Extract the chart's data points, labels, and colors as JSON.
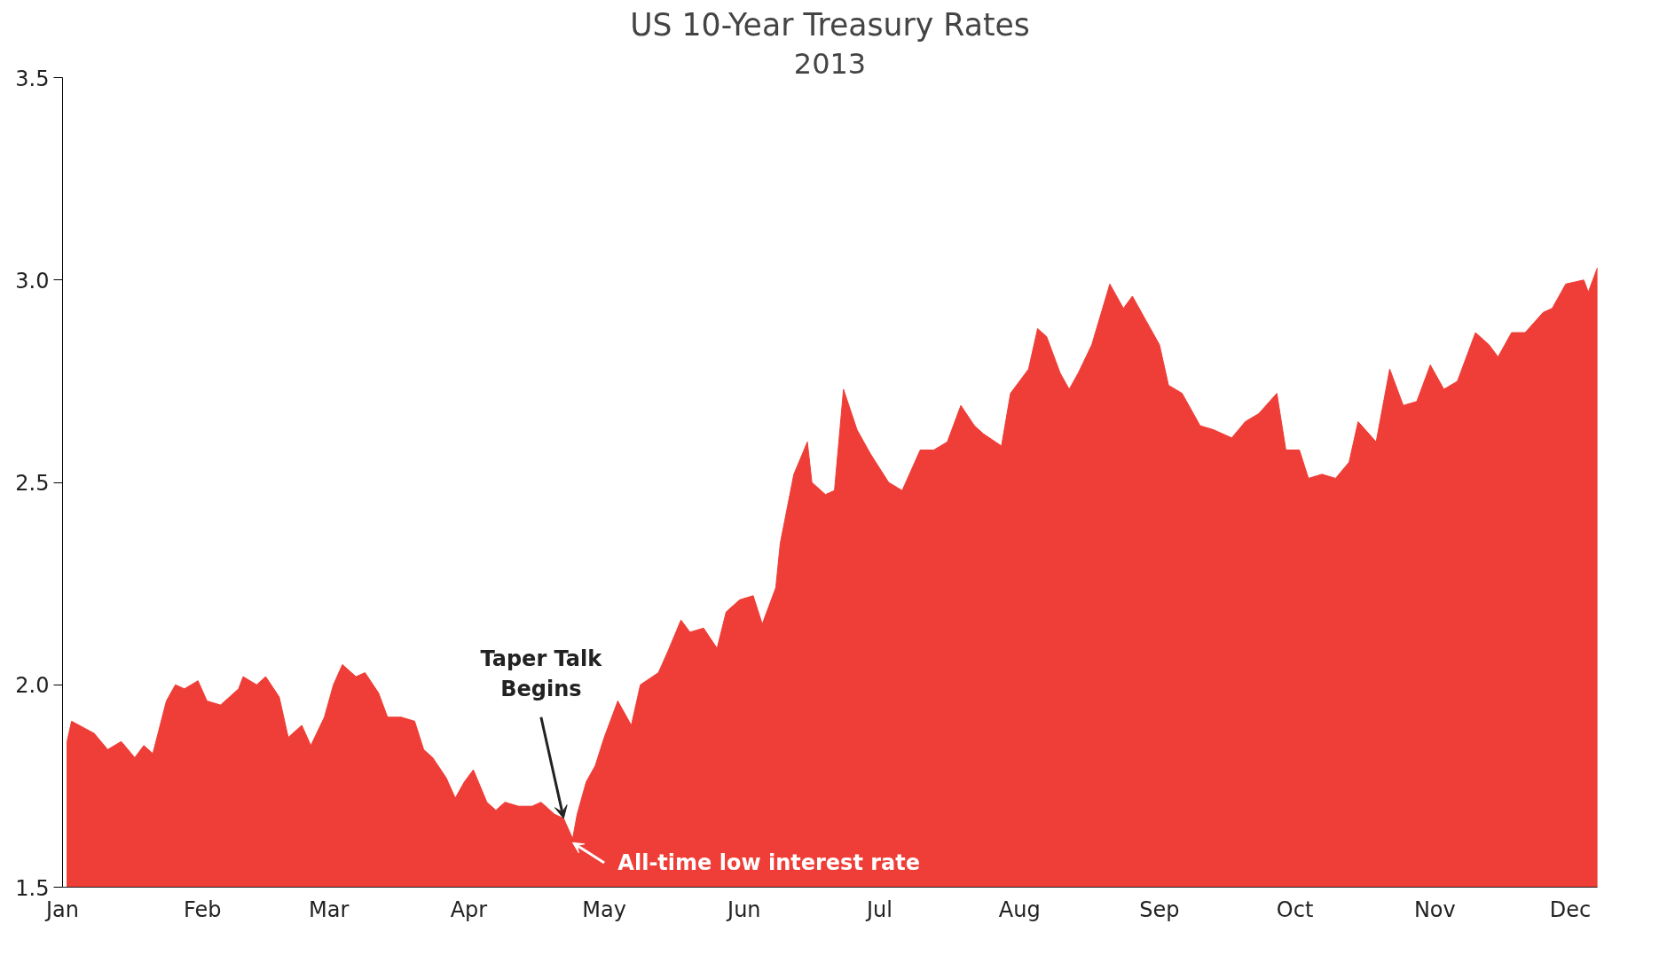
{
  "chart_data": {
    "type": "area",
    "title": "US 10-Year Treasury Rates",
    "subtitle": "2013",
    "x": [
      "2013-01-02",
      "2013-01-03",
      "2013-01-08",
      "2013-01-11",
      "2013-01-14",
      "2013-01-17",
      "2013-01-19",
      "2013-01-21",
      "2013-01-24",
      "2013-01-26",
      "2013-01-28",
      "2013-01-31",
      "2013-02-02",
      "2013-02-05",
      "2013-02-09",
      "2013-02-10",
      "2013-02-13",
      "2013-02-15",
      "2013-02-18",
      "2013-02-20",
      "2013-02-23",
      "2013-02-25",
      "2013-02-28",
      "2013-03-02",
      "2013-03-04",
      "2013-03-07",
      "2013-03-09",
      "2013-03-12",
      "2013-03-14",
      "2013-03-17",
      "2013-03-20",
      "2013-03-22",
      "2013-03-24",
      "2013-03-27",
      "2013-03-29",
      "2013-03-31",
      "2013-04-02",
      "2013-04-05",
      "2013-04-07",
      "2013-04-09",
      "2013-04-12",
      "2013-04-15",
      "2013-04-17",
      "2013-04-20",
      "2013-04-22",
      "2013-04-24",
      "2013-04-25",
      "2013-04-27",
      "2013-04-29",
      "2013-05-01",
      "2013-05-04",
      "2013-05-07",
      "2013-05-09",
      "2013-05-13",
      "2013-05-15",
      "2013-05-18",
      "2013-05-20",
      "2013-05-23",
      "2013-05-26",
      "2013-05-28",
      "2013-05-31",
      "2013-06-03",
      "2013-06-05",
      "2013-06-08",
      "2013-06-09",
      "2013-06-12",
      "2013-06-15",
      "2013-06-16",
      "2013-06-19",
      "2013-06-21",
      "2013-06-23",
      "2013-06-26",
      "2013-06-29",
      "2013-07-03",
      "2013-07-06",
      "2013-07-10",
      "2013-07-13",
      "2013-07-16",
      "2013-07-19",
      "2013-07-22",
      "2013-07-24",
      "2013-07-28",
      "2013-07-30",
      "2013-08-03",
      "2013-08-05",
      "2013-08-07",
      "2013-08-10",
      "2013-08-12",
      "2013-08-14",
      "2013-08-17",
      "2013-08-21",
      "2013-08-24",
      "2013-08-26",
      "2013-08-29",
      "2013-09-01",
      "2013-09-03",
      "2013-09-06",
      "2013-09-10",
      "2013-09-13",
      "2013-09-17",
      "2013-09-20",
      "2013-09-23",
      "2013-09-27",
      "2013-09-29",
      "2013-10-02",
      "2013-10-04",
      "2013-10-07",
      "2013-10-10",
      "2013-10-13",
      "2013-10-15",
      "2013-10-19",
      "2013-10-22",
      "2013-10-25",
      "2013-10-28",
      "2013-10-31",
      "2013-11-03",
      "2013-11-06",
      "2013-11-10",
      "2013-11-13",
      "2013-11-15",
      "2013-11-18",
      "2013-11-21",
      "2013-11-25",
      "2013-11-27",
      "2013-11-30",
      "2013-12-04",
      "2013-12-05",
      "2013-12-07"
    ],
    "series": [
      {
        "color": "#ef3d37",
        "values": [
          1.86,
          1.91,
          1.88,
          1.84,
          1.86,
          1.82,
          1.85,
          1.83,
          1.96,
          2.0,
          1.99,
          2.01,
          1.96,
          1.95,
          1.99,
          2.02,
          2.0,
          2.02,
          1.97,
          1.87,
          1.9,
          1.85,
          1.92,
          2.0,
          2.05,
          2.02,
          2.03,
          1.98,
          1.92,
          1.92,
          1.91,
          1.84,
          1.82,
          1.77,
          1.72,
          1.76,
          1.79,
          1.71,
          1.69,
          1.71,
          1.7,
          1.7,
          1.71,
          1.68,
          1.67,
          1.62,
          1.68,
          1.76,
          1.8,
          1.87,
          1.96,
          1.9,
          2.0,
          2.03,
          2.08,
          2.16,
          2.13,
          2.14,
          2.09,
          2.18,
          2.21,
          2.22,
          2.15,
          2.24,
          2.35,
          2.52,
          2.6,
          2.5,
          2.47,
          2.48,
          2.73,
          2.63,
          2.57,
          2.5,
          2.48,
          2.58,
          2.58,
          2.6,
          2.69,
          2.64,
          2.62,
          2.59,
          2.72,
          2.78,
          2.88,
          2.86,
          2.77,
          2.73,
          2.77,
          2.84,
          2.99,
          2.93,
          2.96,
          2.9,
          2.84,
          2.74,
          2.72,
          2.64,
          2.63,
          2.61,
          2.65,
          2.67,
          2.72,
          2.58,
          2.58,
          2.51,
          2.52,
          2.51,
          2.55,
          2.65,
          2.6,
          2.78,
          2.69,
          2.7,
          2.79,
          2.73,
          2.75,
          2.87,
          2.84,
          2.81,
          2.87,
          2.87,
          2.92,
          2.93,
          2.99,
          3.0,
          2.97,
          3.03
        ]
      }
    ],
    "xlim": [
      "2013-01-01",
      "2013-12-07"
    ],
    "xticks": [
      {
        "value": "2013-01-01",
        "label": "Jan"
      },
      {
        "value": "2013-02-01",
        "label": "Feb"
      },
      {
        "value": "2013-03-01",
        "label": "Mar"
      },
      {
        "value": "2013-04-01",
        "label": "Apr"
      },
      {
        "value": "2013-05-01",
        "label": "May"
      },
      {
        "value": "2013-06-01",
        "label": "Jun"
      },
      {
        "value": "2013-07-01",
        "label": "Jul"
      },
      {
        "value": "2013-08-01",
        "label": "Aug"
      },
      {
        "value": "2013-09-01",
        "label": "Sep"
      },
      {
        "value": "2013-10-01",
        "label": "Oct"
      },
      {
        "value": "2013-11-01",
        "label": "Nov"
      },
      {
        "value": "2013-12-01",
        "label": "Dec"
      }
    ],
    "ylim": [
      1.5,
      3.5
    ],
    "yticks": [
      {
        "value": 1.5,
        "label": "1.5"
      },
      {
        "value": 2,
        "label": "2.0"
      },
      {
        "value": 2.5,
        "label": "2.5"
      },
      {
        "value": 3,
        "label": "3.0"
      },
      {
        "value": 3.5,
        "label": "3.5"
      }
    ],
    "grid": false,
    "annotations": [
      {
        "text": "Taper Talk\nBegins",
        "x": "2013-04-22",
        "y": 1.67
      },
      {
        "text": "All-time low interest rate",
        "x": "2013-04-24",
        "y": 1.62
      }
    ]
  }
}
